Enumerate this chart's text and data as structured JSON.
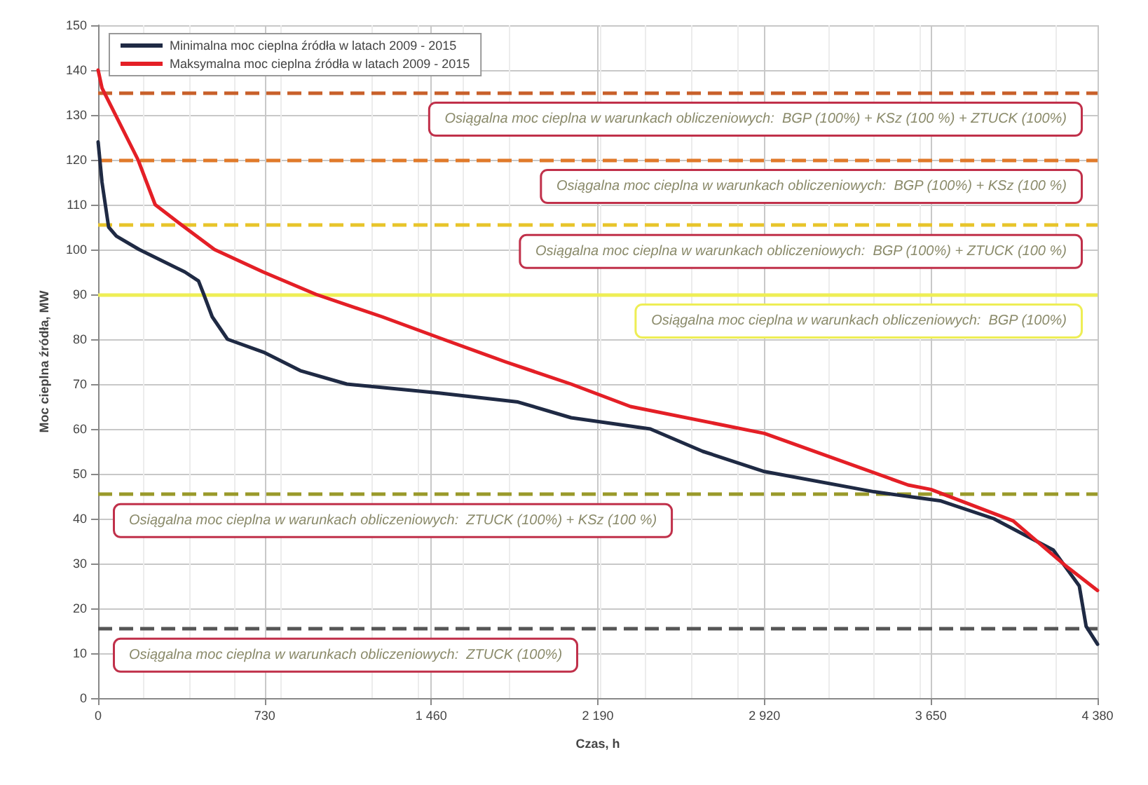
{
  "chart_data": {
    "type": "line",
    "xlabel": "Czas, h",
    "ylabel": "Moc cieplna źródła, MW",
    "x": [
      0,
      17,
      46,
      80,
      180,
      380,
      440,
      463,
      500,
      567,
      730,
      886,
      1090,
      1494,
      1840,
      2073,
      2420,
      2650,
      2920,
      3400,
      3690,
      3925,
      4186,
      4300,
      4330,
      4380
    ],
    "series": [
      {
        "name": "Minimalna moc cieplna źródła w latach 2009 - 2015",
        "color": "#1f2a44",
        "values": [
          124,
          115,
          105,
          103,
          100,
          95,
          93,
          90,
          85,
          80,
          77,
          73,
          70,
          68,
          66,
          62.5,
          60,
          55,
          50.5,
          46,
          44,
          40,
          33,
          25,
          16,
          12
        ]
      },
      {
        "name": "Maksymalna moc cieplna źródła w latach 2009 - 2015",
        "color": "#e41f26",
        "x": [
          0,
          17,
          175,
          250,
          365,
          510,
          723,
          955,
          1245,
          1512,
          1783,
          2073,
          2333,
          2920,
          3550,
          3650,
          4010,
          4240,
          4380
        ],
        "values": [
          140,
          136,
          120,
          110,
          105.5,
          100,
          95,
          90,
          85,
          80,
          75,
          70,
          65,
          59,
          47.5,
          46.5,
          39.5,
          29.5,
          24
        ]
      }
    ],
    "xlim": [
      0,
      4380
    ],
    "xticks": [
      0,
      730,
      {
        "value": 1460,
        "label": "1 460"
      },
      {
        "value": 2190,
        "label": "2 190"
      },
      {
        "value": 2920,
        "label": "2 920"
      },
      {
        "value": 3650,
        "label": "3 650"
      },
      {
        "value": 4380,
        "label": "4 380"
      }
    ],
    "ylim": [
      0,
      150
    ],
    "yticks": [
      0,
      10,
      20,
      30,
      40,
      50,
      60,
      70,
      80,
      90,
      100,
      110,
      120,
      130,
      140,
      150
    ],
    "ref_lines": [
      {
        "axis": "y",
        "value": 135,
        "label": "Osiągalna moc cieplna w warunkach obliczeniowych:  BGP (100%) + KSz (100 %) + ZTUCK (100%)",
        "color": "#c8602a",
        "line_style": "dashed"
      },
      {
        "axis": "y",
        "value": 120,
        "label": "Osiągalna moc cieplna w warunkach obliczeniowych:  BGP (100%) + KSz (100 %)",
        "color": "#e07a2a",
        "line_style": "dashed"
      },
      {
        "axis": "y",
        "value": 105.5,
        "label": "Osiągalna moc cieplna w warunkach obliczeniowych:  BGP (100%) + ZTUCK (100 %)",
        "color": "#e8c42a",
        "line_style": "dashed"
      },
      {
        "axis": "y",
        "value": 90,
        "label": "Osiągalna moc cieplna w warunkach obliczeniowych:  BGP (100%)",
        "color": "#eeee55",
        "line_style": "solid"
      },
      {
        "axis": "y",
        "value": 45.5,
        "label": "Osiągalna moc cieplna w warunkach obliczeniowych:  ZTUCK (100%) + KSz (100 %)",
        "color": "#9a9a2a",
        "line_style": "dashed"
      },
      {
        "axis": "y",
        "value": 15.5,
        "label": "Osiągalna moc cieplna w warunkach obliczeniowych:  ZTUCK (100%)",
        "color": "#555555",
        "line_style": "dashed"
      }
    ],
    "grid": true,
    "legend": "top left",
    "marker": "none",
    "line_style": "solid"
  }
}
